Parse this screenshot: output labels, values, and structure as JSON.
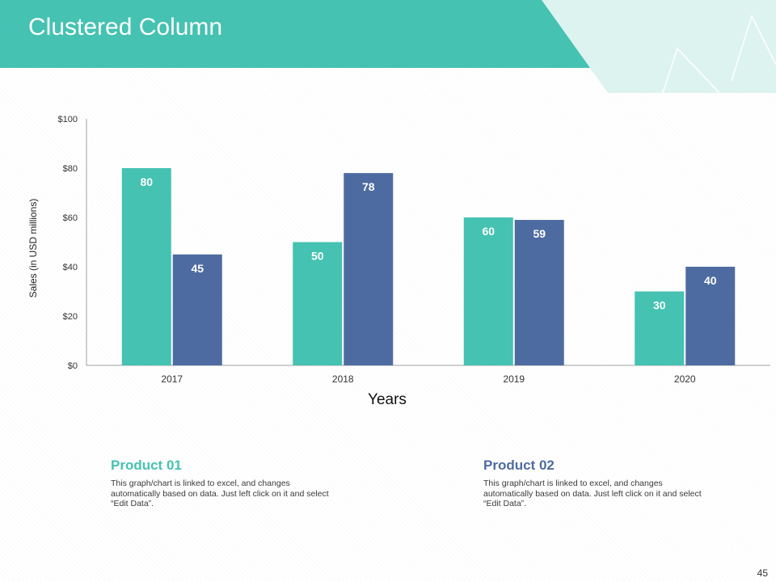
{
  "slide": {
    "title": "Clustered Column",
    "page_number": "45"
  },
  "colors": {
    "teal": "#45C2B1",
    "blue": "#4E6BA1",
    "decor_light": "#DDF3F0",
    "decor_line": "#ffffff"
  },
  "products": [
    {
      "title": "Product 01",
      "color": "#45C2B1",
      "description": "This graph/chart is linked to excel, and changes automatically based on data. Just left click on it and select “Edit Data”."
    },
    {
      "title": "Product 02",
      "color": "#4E6BA1",
      "description": "This graph/chart is linked to excel, and changes automatically based on data. Just left click on it and select “Edit Data”."
    }
  ],
  "chart_data": {
    "type": "bar",
    "title": "",
    "xlabel": "Years",
    "ylabel": "Sales (in USD millions)",
    "categories": [
      "2017",
      "2018",
      "2019",
      "2020"
    ],
    "ylim": [
      0,
      100
    ],
    "yticks": [
      "$0",
      "$20",
      "$40",
      "$60",
      "$80",
      "$100"
    ],
    "ytick_values": [
      0,
      20,
      40,
      60,
      80,
      100
    ],
    "grid": false,
    "legend": "none",
    "series": [
      {
        "values": [
          80,
          50,
          60,
          30
        ],
        "color": "#45C2B1",
        "labels": [
          "80",
          "50",
          "60",
          "30"
        ]
      },
      {
        "values": [
          45,
          78,
          59,
          40
        ],
        "color": "#4E6BA1",
        "labels": [
          "45",
          "78",
          "59",
          "40"
        ]
      }
    ]
  }
}
